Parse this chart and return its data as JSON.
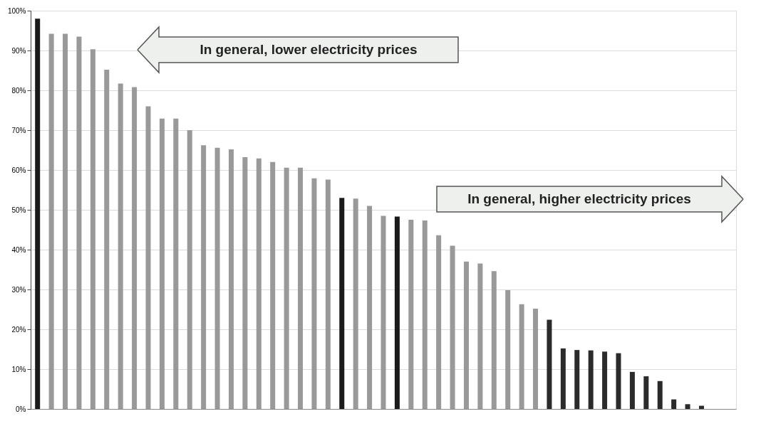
{
  "chart_data": {
    "type": "bar",
    "categories": [
      null,
      null,
      null,
      null,
      null,
      null,
      null,
      null,
      null,
      null,
      null,
      null,
      null,
      null,
      null,
      null,
      null,
      null,
      null,
      null,
      null,
      null,
      null,
      null,
      null,
      null,
      null,
      null,
      null,
      null,
      null,
      null,
      null,
      null,
      null,
      null,
      null,
      null,
      null,
      null,
      null,
      null,
      null,
      null,
      null,
      null,
      null,
      null,
      null,
      null,
      null
    ],
    "values": [
      98,
      94.2,
      94.2,
      93.5,
      90.3,
      85.2,
      81.7,
      80.8,
      76,
      72.9,
      72.9,
      70,
      66.2,
      65.6,
      65.2,
      63.2,
      62.9,
      62,
      60.6,
      60.6,
      57.9,
      57.6,
      53,
      52.8,
      51,
      48.5,
      48.3,
      47.5,
      47.3,
      43.6,
      41,
      37,
      36.5,
      34.6,
      29.8,
      26.3,
      25.2,
      22.4,
      15.2,
      14.8,
      14.7,
      14.4,
      14,
      9.3,
      8.2,
      7,
      2.4,
      1.2,
      0.8,
      0,
      0
    ],
    "colors": [
      "#1a1a1a",
      "#999999",
      "#999999",
      "#999999",
      "#999999",
      "#999999",
      "#999999",
      "#999999",
      "#999999",
      "#999999",
      "#999999",
      "#999999",
      "#999999",
      "#999999",
      "#999999",
      "#999999",
      "#999999",
      "#999999",
      "#999999",
      "#999999",
      "#999999",
      "#999999",
      "#1a1a1a",
      "#999999",
      "#999999",
      "#999999",
      "#1a1a1a",
      "#999999",
      "#999999",
      "#999999",
      "#999999",
      "#999999",
      "#999999",
      "#999999",
      "#999999",
      "#999999",
      "#999999",
      "#2b2b2b",
      "#2b2b2b",
      "#2b2b2b",
      "#2b2b2b",
      "#2b2b2b",
      "#2b2b2b",
      "#2b2b2b",
      "#2b2b2b",
      "#2b2b2b",
      "#2b2b2b",
      "#2b2b2b",
      "#2b2b2b",
      "#2b2b2b",
      "#2b2b2b"
    ],
    "ylim": [
      0,
      100
    ],
    "yticks": [
      {
        "value": 0,
        "label": "0%"
      },
      {
        "value": 10,
        "label": "10%"
      },
      {
        "value": 20,
        "label": "20%"
      },
      {
        "value": 30,
        "label": "30%"
      },
      {
        "value": 40,
        "label": "40%"
      },
      {
        "value": 50,
        "label": "50%"
      },
      {
        "value": 60,
        "label": "60%"
      },
      {
        "value": 70,
        "label": "70%"
      },
      {
        "value": 80,
        "label": "80%"
      },
      {
        "value": 90,
        "label": "90%"
      },
      {
        "value": 100,
        "label": "100%"
      }
    ],
    "grid": "y",
    "tick_labels": "y",
    "annotations": [
      "In general, lower electricity prices",
      "In general, higher electricity prices"
    ]
  }
}
